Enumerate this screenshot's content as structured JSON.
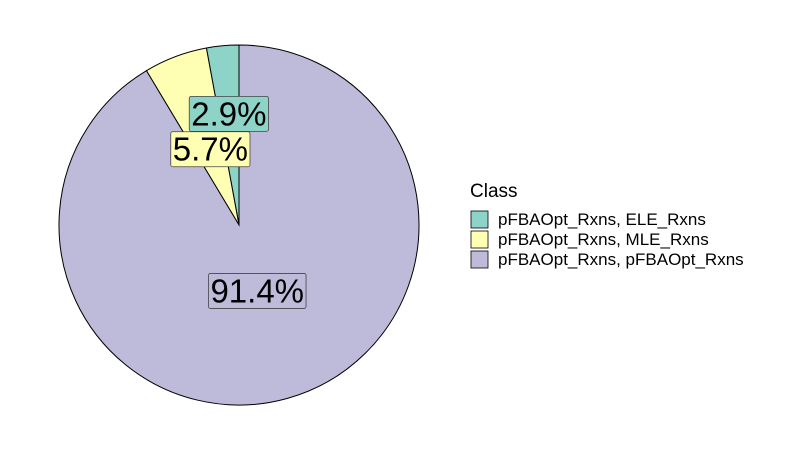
{
  "chart_data": {
    "type": "pie",
    "legend_title": "Class",
    "legend_position": "right",
    "start": "12 o'clock",
    "direction": "counter-clockwise",
    "slices": [
      {
        "label": "pFBAOpt_Rxns, ELE_Rxns",
        "value": 2.9,
        "display": "2.9%",
        "color": "#8DD3C7"
      },
      {
        "label": "pFBAOpt_Rxns, MLE_Rxns",
        "value": 5.7,
        "display": "5.7%",
        "color": "#FFFFB3"
      },
      {
        "label": "pFBAOpt_Rxns, pFBAOpt_Rxns",
        "value": 91.4,
        "display": "91.4%",
        "color": "#BEBADA"
      }
    ]
  }
}
